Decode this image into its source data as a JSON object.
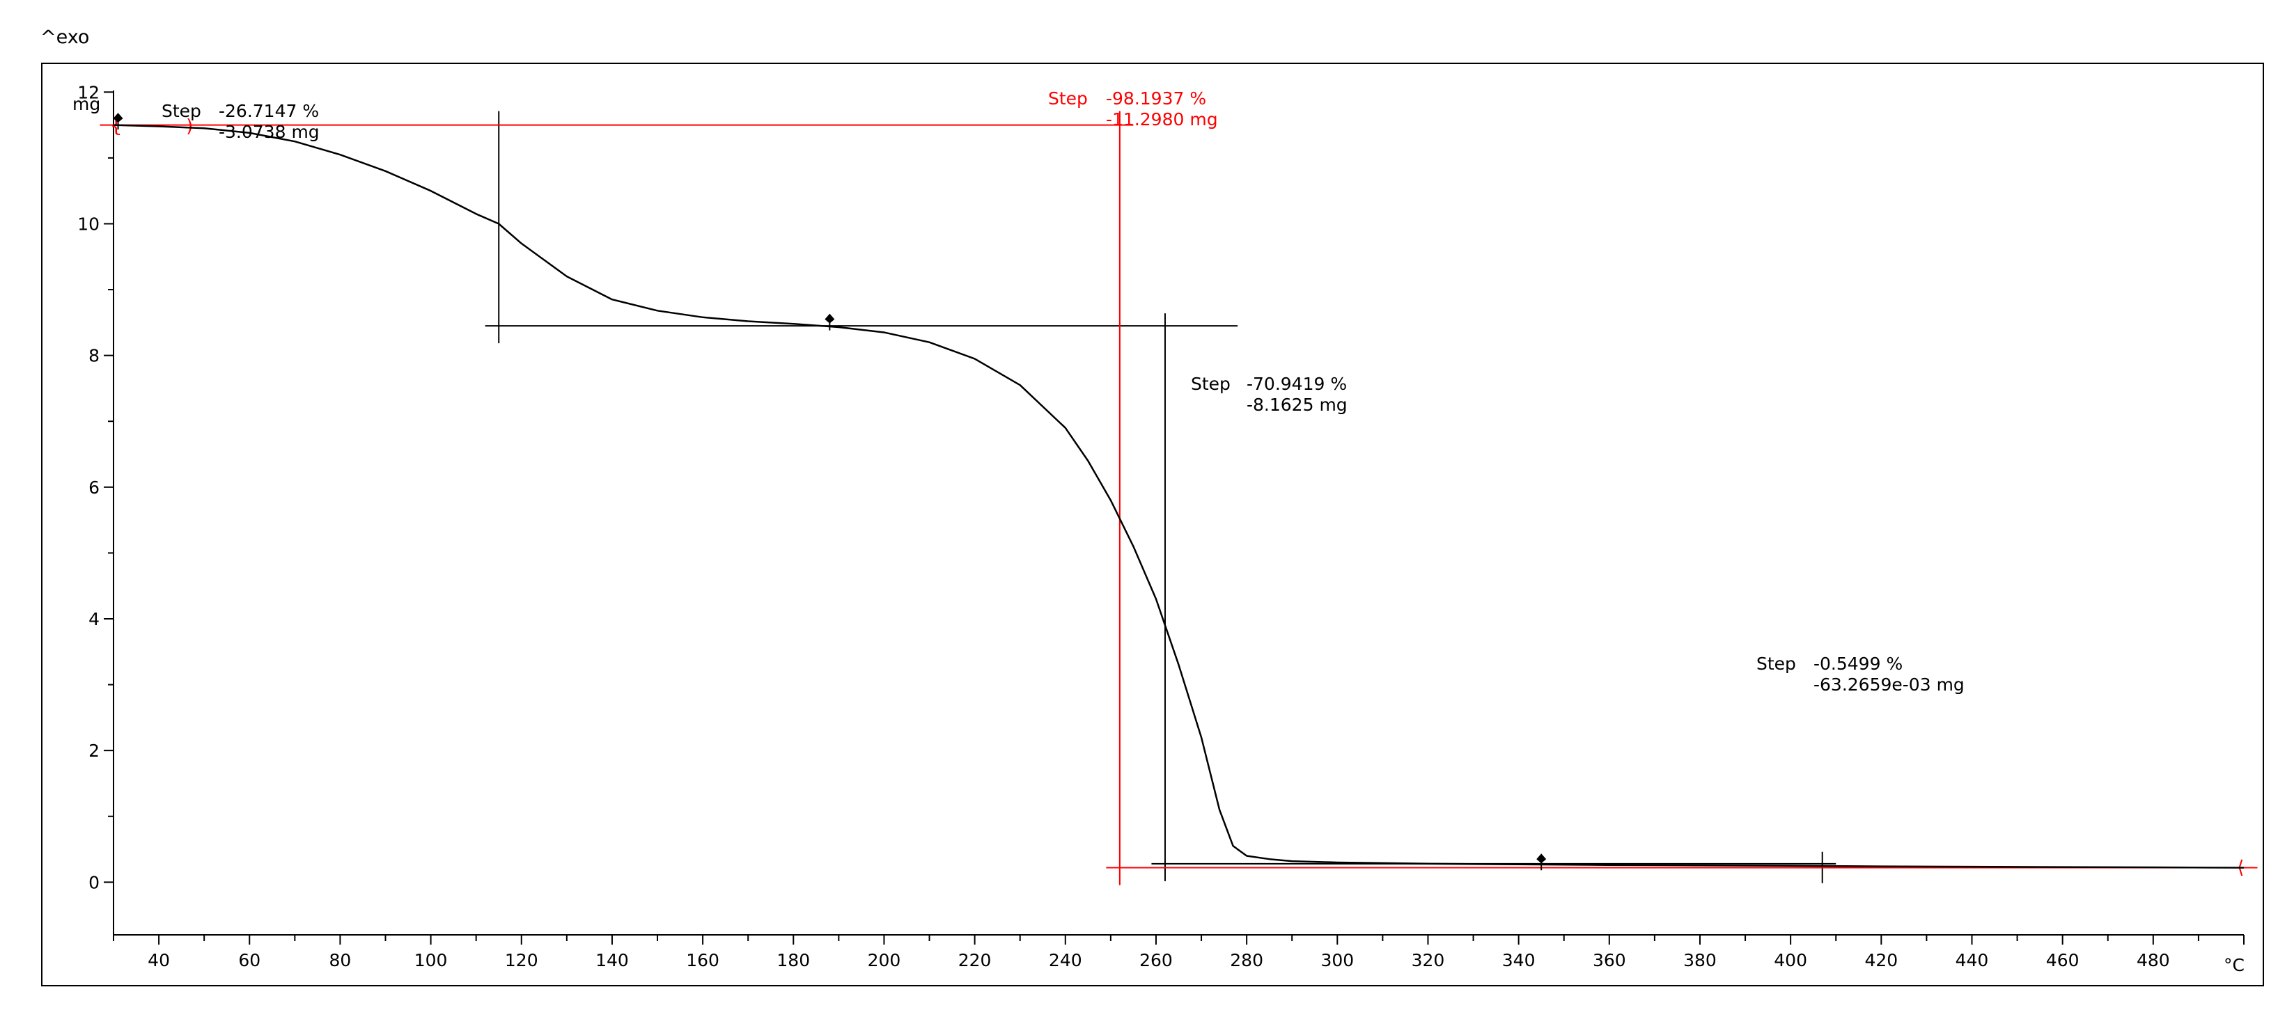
{
  "chart_data": {
    "type": "line",
    "corner_label": "^exo",
    "ylabel": "mg",
    "xlabel": "°C",
    "xlim": [
      30,
      500
    ],
    "ylim": [
      -0.8,
      12.5
    ],
    "x_ticks": [
      40,
      60,
      80,
      100,
      120,
      140,
      160,
      180,
      200,
      220,
      240,
      260,
      280,
      300,
      320,
      340,
      360,
      380,
      400,
      420,
      440,
      460,
      480
    ],
    "y_ticks": [
      0,
      2,
      4,
      6,
      8,
      10,
      12
    ],
    "grid": false,
    "colors": {
      "curve": "#000000",
      "highlight": "#ff0000",
      "axis": "#000000"
    },
    "series": [
      {
        "x": [
          30,
          40,
          50,
          60,
          70,
          80,
          90,
          100,
          110,
          115,
          120,
          130,
          140,
          150,
          160,
          170,
          180,
          190,
          200,
          210,
          220,
          230,
          240,
          245,
          250,
          255,
          260,
          265,
          270,
          274,
          277,
          280,
          285,
          290,
          300,
          320,
          340,
          360,
          380,
          400,
          420,
          440,
          460,
          480,
          500
        ],
        "values": [
          11.5,
          11.48,
          11.45,
          11.38,
          11.25,
          11.05,
          10.8,
          10.5,
          10.15,
          10.0,
          9.7,
          9.2,
          8.85,
          8.68,
          8.58,
          8.52,
          8.48,
          8.43,
          8.35,
          8.2,
          7.95,
          7.55,
          6.9,
          6.4,
          5.8,
          5.1,
          4.3,
          3.3,
          2.2,
          1.1,
          0.55,
          0.4,
          0.35,
          0.32,
          0.3,
          0.28,
          0.27,
          0.26,
          0.255,
          0.25,
          0.24,
          0.235,
          0.23,
          0.225,
          0.22
        ]
      }
    ],
    "annotations": [
      {
        "label": "Step",
        "percent": "-26.7147 %",
        "mass": "-3.0738 mg",
        "color": "#000000"
      },
      {
        "label": "Step",
        "percent": "-98.1937 %",
        "mass": "-11.2980 mg",
        "color": "#ff0000"
      },
      {
        "label": "Step",
        "percent": "-70.9419 %",
        "mass": "-8.1625 mg",
        "color": "#000000"
      },
      {
        "label": "Step",
        "percent": "-0.5499 %",
        "mass": "-63.2659e-03 mg",
        "color": "#000000"
      }
    ],
    "step_construction": {
      "black": [
        {
          "x0": 115,
          "x1": 188,
          "y_top": 11.5,
          "y_bottom": 8.45
        },
        {
          "x0": 188,
          "x1": 345,
          "y_top": 8.45,
          "y_bottom": 0.28
        },
        {
          "x0": 345,
          "x1": 407,
          "y_top": 0.28,
          "y_bottom": 0.25
        }
      ],
      "red": {
        "x": 252,
        "y_top": 11.5,
        "y_bottom": 0.22
      }
    },
    "markers": [
      {
        "x": 31,
        "y": 11.6,
        "color": "#000000"
      },
      {
        "x": 188,
        "y": 8.55,
        "color": "#000000"
      },
      {
        "x": 345,
        "y": 0.35,
        "color": "#000000"
      }
    ]
  }
}
